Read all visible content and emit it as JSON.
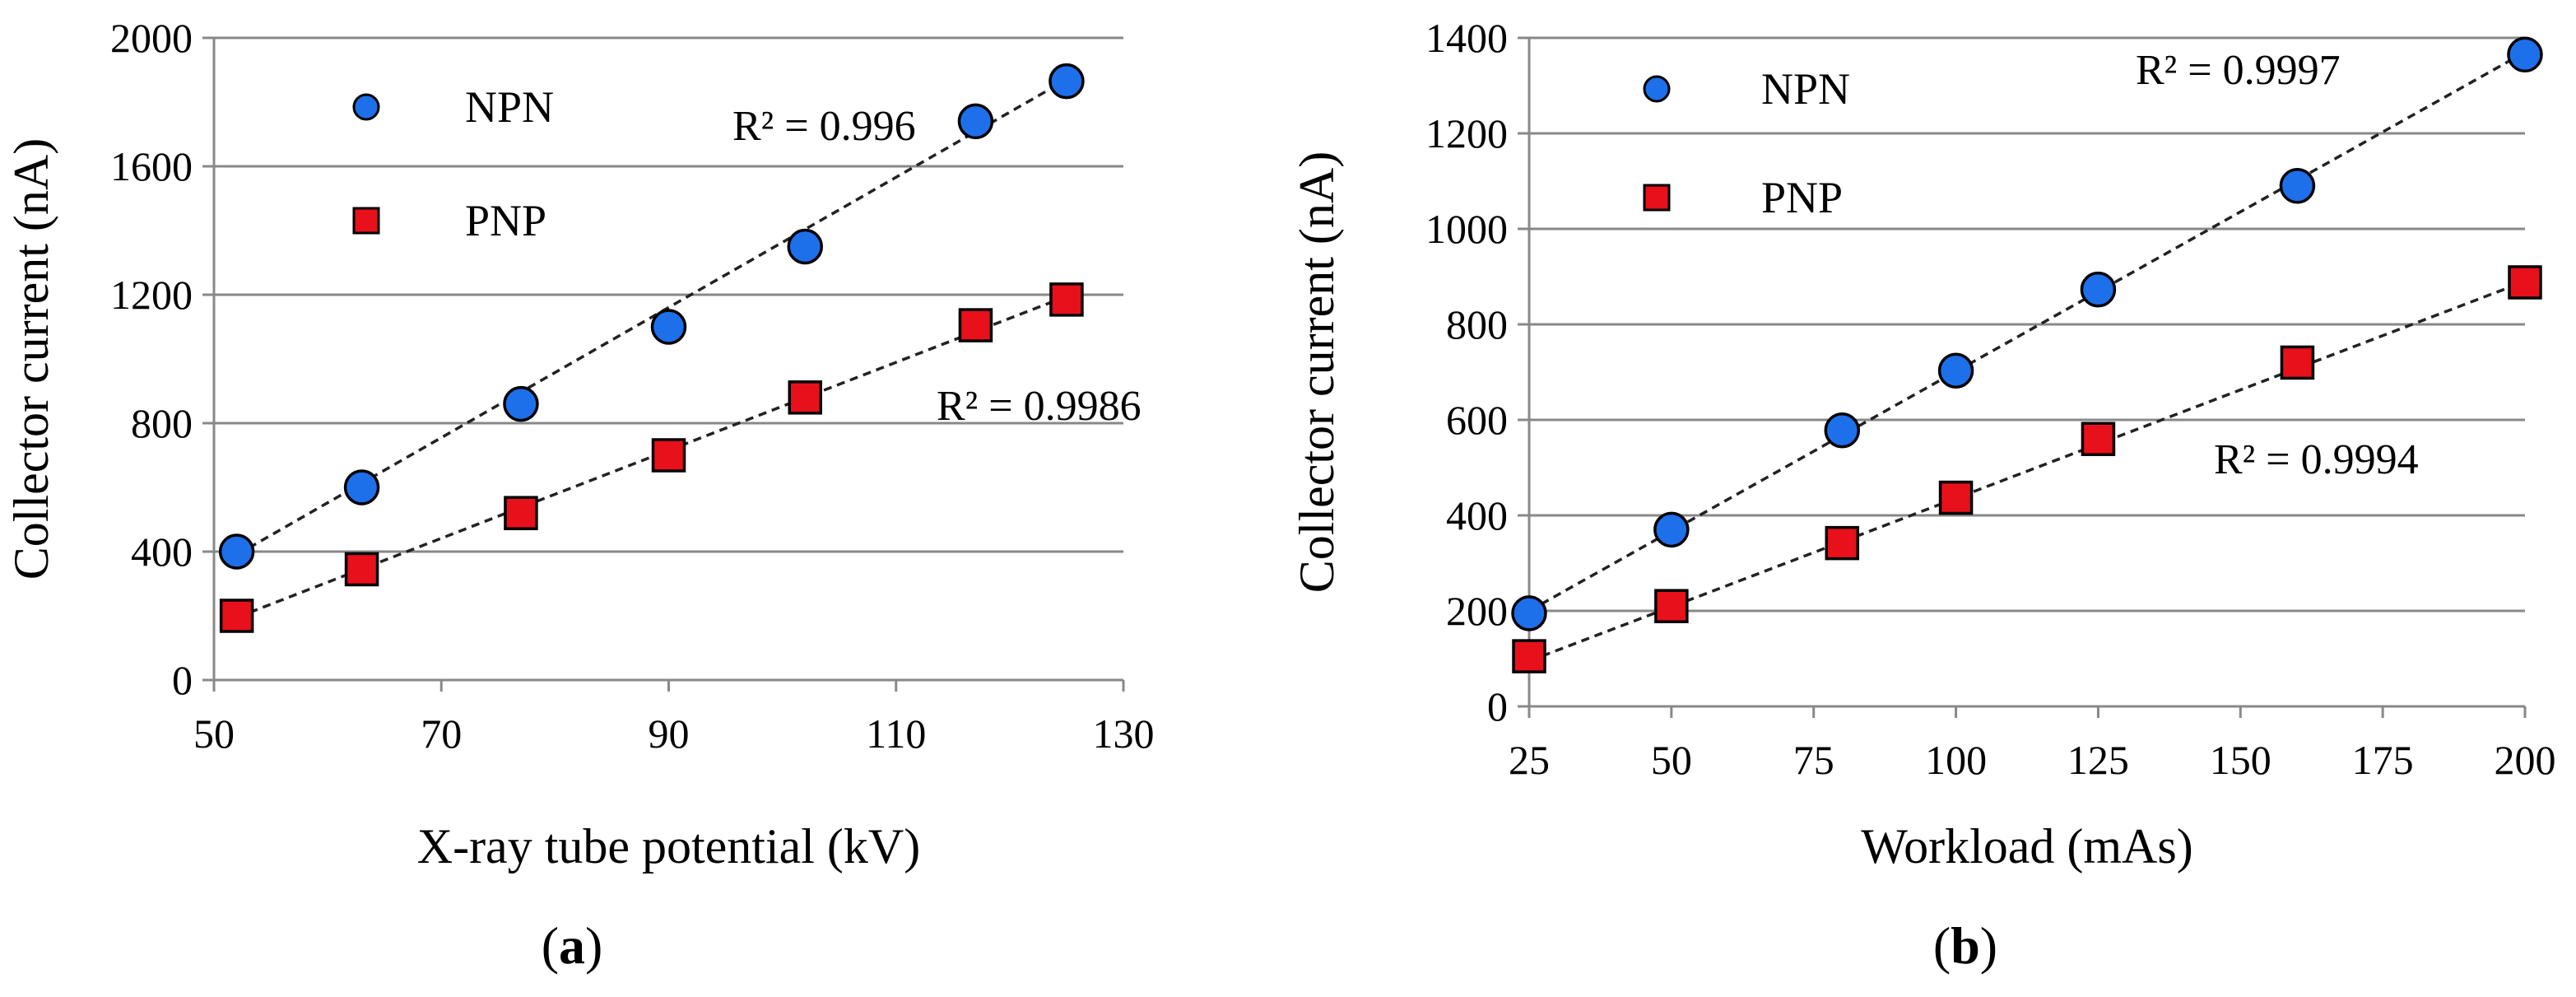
{
  "chart_data": [
    {
      "type": "scatter",
      "panel_label": {
        "open": "(",
        "letter": "a",
        "close": ")"
      },
      "xlabel": "X-ray tube potential (kV)",
      "ylabel": "Collector current (nA)",
      "xlim": [
        50,
        130
      ],
      "ylim": [
        0,
        2000
      ],
      "xticks": [
        50,
        70,
        90,
        110,
        130
      ],
      "yticks": [
        0,
        400,
        800,
        1200,
        1600,
        2000
      ],
      "grid": "horizontal",
      "legend_position": "top-left",
      "series": [
        {
          "name": "NPN",
          "marker": "circle",
          "color": "#1E6FEA",
          "x": [
            52,
            63,
            77,
            90,
            102,
            117,
            125
          ],
          "y": [
            400,
            600,
            860,
            1100,
            1350,
            1740,
            1865
          ],
          "trendline": {
            "x": [
              52,
              125
            ],
            "y": [
              390,
              1870
            ]
          },
          "r2_label": "R² = 0.996"
        },
        {
          "name": "PNP",
          "marker": "square",
          "color": "#E8101A",
          "x": [
            52,
            63,
            77,
            90,
            102,
            117,
            125
          ],
          "y": [
            200,
            345,
            520,
            700,
            880,
            1105,
            1185
          ],
          "trendline": {
            "x": [
              52,
              125
            ],
            "y": [
              195,
              1195
            ]
          },
          "r2_label": "R² = 0.9986"
        }
      ]
    },
    {
      "type": "scatter",
      "panel_label": {
        "open": "(",
        "letter": "b",
        "close": ")"
      },
      "xlabel": "Workload (mAs)",
      "ylabel": "Collector current (nA)",
      "xlim": [
        25,
        200
      ],
      "ylim": [
        0,
        1400
      ],
      "xticks": [
        25,
        50,
        75,
        100,
        125,
        150,
        175,
        200
      ],
      "yticks": [
        0,
        200,
        400,
        600,
        800,
        1000,
        1200,
        1400
      ],
      "grid": "horizontal",
      "legend_position": "top-left",
      "series": [
        {
          "name": "NPN",
          "marker": "circle",
          "color": "#1E6FEA",
          "x": [
            25,
            50,
            80,
            100,
            125,
            160,
            200
          ],
          "y": [
            195,
            370,
            578,
            703,
            873,
            1090,
            1365
          ],
          "trendline": {
            "x": [
              25,
              200
            ],
            "y": [
              200,
              1370
            ]
          },
          "r2_label": "R² = 0.9997"
        },
        {
          "name": "PNP",
          "marker": "square",
          "color": "#E8101A",
          "x": [
            25,
            50,
            80,
            100,
            125,
            160,
            200
          ],
          "y": [
            105,
            210,
            342,
            437,
            560,
            720,
            888
          ],
          "trendline": {
            "x": [
              25,
              200
            ],
            "y": [
              95,
              890
            ]
          },
          "r2_label": "R² = 0.9994"
        }
      ]
    }
  ]
}
